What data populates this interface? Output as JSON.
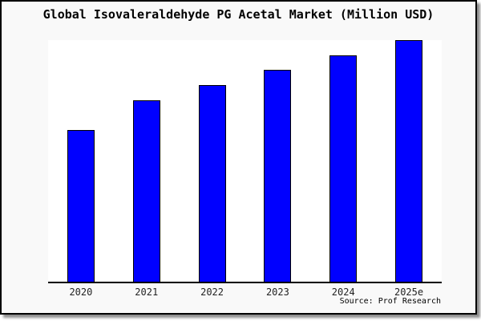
{
  "window": {
    "background": "#f9f9f9",
    "frame_border_color": "#000000",
    "shadow_color": "#999999"
  },
  "chart": {
    "title": "Global Isovaleraldehyde PG Acetal Market (Million USD)",
    "source": "Source: Prof Research",
    "plot_background": "#ffffff",
    "bar_fill": "#0000ff",
    "bar_border": "#000000",
    "axis_color": "#000000"
  },
  "chart_data": {
    "type": "bar",
    "title": "Global Isovaleraldehyde PG Acetal Market (Million USD)",
    "categories": [
      "2020",
      "2021",
      "2022",
      "2023",
      "2024",
      "2025e"
    ],
    "values": [
      189,
      226,
      245,
      264,
      282,
      301
    ],
    "xlabel": "",
    "ylabel": "",
    "ylim": [
      0,
      301
    ],
    "grid": false,
    "legend_position": "none",
    "value_scale": "relative (no y-axis labels shown; values estimated as bar heights in px)",
    "annotations": [
      "Source: Prof Research"
    ]
  }
}
